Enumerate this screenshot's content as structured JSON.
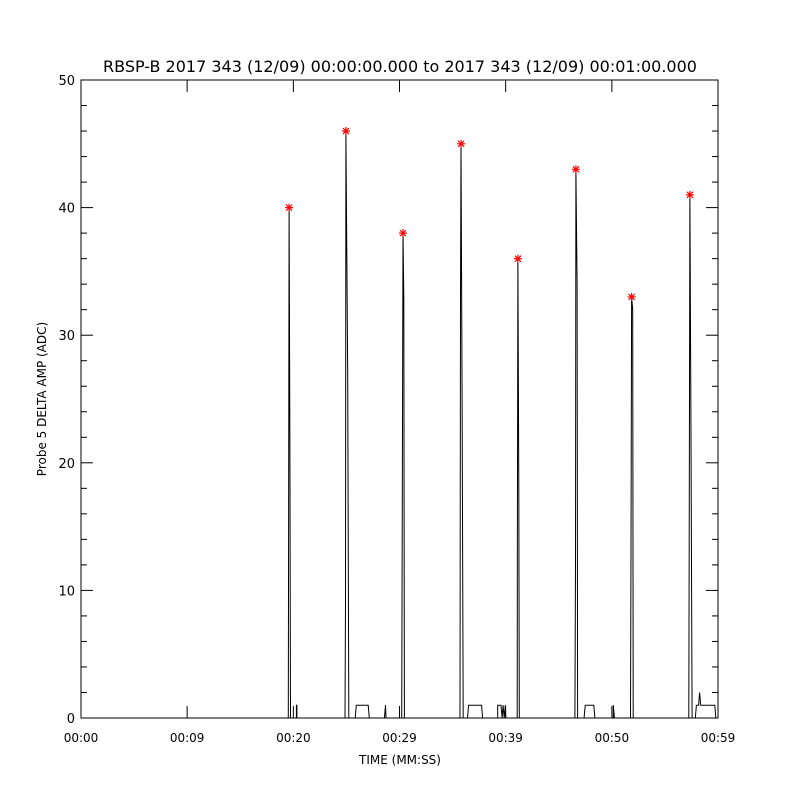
{
  "chart_data": {
    "type": "line",
    "title": "RBSP-B 2017 343 (12/09) 00:00:00.000 to 2017 343 (12/09) 00:01:00.000",
    "xlabel": "TIME (MM:SS)",
    "ylabel": "Probe 5 DELTA AMP (ADC)",
    "xlim": [
      0,
      59
    ],
    "ylim": [
      0,
      50
    ],
    "x_tick_values": [
      0,
      9.83,
      19.67,
      29.5,
      39.33,
      49.17,
      59
    ],
    "x_tick_labels": [
      "00:00",
      "00:09",
      "00:20",
      "00:29",
      "00:39",
      "00:50",
      "00:59"
    ],
    "y_ticks": [
      0,
      10,
      20,
      30,
      40,
      50
    ],
    "grid": false,
    "line_color": "#000000",
    "marker_color": "#ff0000",
    "series": [
      {
        "points": [
          [
            0,
            0
          ],
          [
            19.2,
            0
          ],
          [
            19.27,
            40
          ],
          [
            19.35,
            21
          ],
          [
            19.4,
            0
          ],
          [
            19.95,
            0
          ],
          [
            19.95,
            1
          ],
          [
            20.0,
            1
          ],
          [
            20.0,
            0
          ],
          [
            24.45,
            0
          ],
          [
            24.5,
            9
          ],
          [
            24.54,
            46
          ],
          [
            24.7,
            27
          ],
          [
            24.8,
            0
          ],
          [
            25.4,
            0
          ],
          [
            25.5,
            1
          ],
          [
            26.6,
            1
          ],
          [
            26.7,
            0
          ],
          [
            28.1,
            0
          ],
          [
            28.2,
            1
          ],
          [
            28.25,
            0
          ],
          [
            29.7,
            0
          ],
          [
            29.75,
            14
          ],
          [
            29.82,
            38
          ],
          [
            29.9,
            33
          ],
          [
            29.95,
            0
          ],
          [
            35.1,
            0
          ],
          [
            35.15,
            33
          ],
          [
            35.2,
            45
          ],
          [
            35.3,
            25
          ],
          [
            35.4,
            0
          ],
          [
            35.8,
            0
          ],
          [
            35.9,
            1
          ],
          [
            37.1,
            1
          ],
          [
            37.2,
            0
          ],
          [
            38.6,
            0
          ],
          [
            38.6,
            1
          ],
          [
            38.9,
            1
          ],
          [
            39.0,
            0
          ],
          [
            39.1,
            1
          ],
          [
            39.2,
            0
          ],
          [
            39.3,
            1
          ],
          [
            39.35,
            0
          ],
          [
            40.4,
            0
          ],
          [
            40.42,
            15
          ],
          [
            40.47,
            36
          ],
          [
            40.55,
            18
          ],
          [
            40.6,
            0
          ],
          [
            45.75,
            0
          ],
          [
            45.8,
            12
          ],
          [
            45.84,
            43
          ],
          [
            45.95,
            34
          ],
          [
            46.0,
            0
          ],
          [
            46.6,
            0
          ],
          [
            46.7,
            1
          ],
          [
            47.5,
            1
          ],
          [
            47.6,
            0
          ],
          [
            49.3,
            0
          ],
          [
            49.3,
            1
          ],
          [
            49.4,
            0
          ],
          [
            50.9,
            0
          ],
          [
            50.95,
            16
          ],
          [
            51.0,
            33
          ],
          [
            51.1,
            32
          ],
          [
            51.15,
            0
          ],
          [
            56.3,
            0
          ],
          [
            56.33,
            14
          ],
          [
            56.4,
            41
          ],
          [
            56.5,
            22
          ],
          [
            56.6,
            0
          ],
          [
            56.9,
            0
          ],
          [
            57.0,
            1
          ],
          [
            57.2,
            1
          ],
          [
            57.3,
            2
          ],
          [
            57.4,
            1
          ],
          [
            58.7,
            1
          ],
          [
            58.8,
            0
          ],
          [
            59,
            0
          ]
        ],
        "peaks": [
          [
            19.27,
            40
          ],
          [
            24.54,
            46
          ],
          [
            29.82,
            38
          ],
          [
            35.2,
            45
          ],
          [
            40.47,
            36
          ],
          [
            45.84,
            43
          ],
          [
            51.0,
            33
          ],
          [
            56.4,
            41
          ]
        ]
      }
    ]
  }
}
